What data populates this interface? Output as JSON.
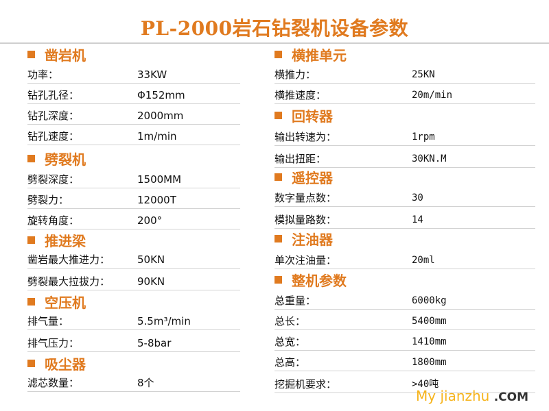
{
  "title": "PL-2000岩石钻裂机设备参数",
  "colors": {
    "accent": "#e07a1f",
    "rule": "#d2d2d2"
  },
  "left": [
    {
      "title": "凿岩机",
      "rows": [
        {
          "label": "功率：",
          "value": "33KW"
        },
        {
          "label": "钻孔孔径：",
          "value": "Φ152mm"
        },
        {
          "label": "钻孔深度：",
          "value": "2000mm"
        },
        {
          "label": "钻孔速度：",
          "value": "1m/min"
        }
      ]
    },
    {
      "title": "劈裂机",
      "rows": [
        {
          "label": "劈裂深度：",
          "value": "1500MM"
        },
        {
          "label": "劈裂力：",
          "value": "12000T"
        },
        {
          "label": "旋转角度：",
          "value": "200°"
        }
      ]
    },
    {
      "title": "推进梁",
      "rows": [
        {
          "label": "凿岩最大推进力：",
          "value": "50KN"
        },
        {
          "label": "劈裂最大拉拔力：",
          "value": "90KN"
        }
      ]
    },
    {
      "title": "空压机",
      "rows": [
        {
          "label": "排气量：",
          "value": "5.5m³/min"
        },
        {
          "label": "排气压力：",
          "value": "5-8bar"
        }
      ]
    },
    {
      "title": "吸尘器",
      "rows": [
        {
          "label": "滤芯数量：",
          "value": "8个"
        }
      ]
    }
  ],
  "right": [
    {
      "title": "横推单元",
      "rows": [
        {
          "label": "横推力：",
          "value": "25KN"
        },
        {
          "label": "横推速度：",
          "value": "20m/min"
        }
      ]
    },
    {
      "title": "回转器",
      "rows": [
        {
          "label": "输出转速为：",
          "value": "1rpm"
        },
        {
          "label": "输出扭距：",
          "value": "30KN.M"
        }
      ]
    },
    {
      "title": "遥控器",
      "rows": [
        {
          "label": "数字量点数：",
          "value": "30"
        },
        {
          "label": "模拟量路数：",
          "value": "14"
        }
      ]
    },
    {
      "title": "注油器",
      "rows": [
        {
          "label": "单次注油量：",
          "value": "20ml"
        }
      ]
    },
    {
      "title": "整机参数",
      "rows": [
        {
          "label": "总重量：",
          "value": "6000kg"
        },
        {
          "label": "总长：",
          "value": "5400mm"
        },
        {
          "label": "总宽：",
          "value": "1410mm"
        },
        {
          "label": "总高：",
          "value": "1800mm"
        },
        {
          "label": "挖掘机要求：",
          "value": ">40吨"
        }
      ]
    }
  ],
  "watermark": {
    "part1": "My jianzhu",
    "part2": ".COM"
  }
}
